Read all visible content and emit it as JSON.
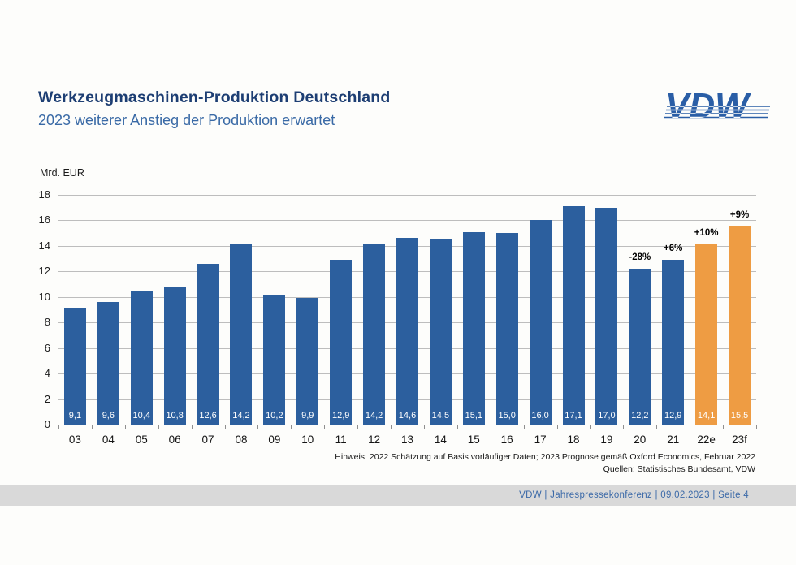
{
  "slide": {
    "header": {
      "title": "Werkzeugmaschinen-Produktion Deutschland",
      "subtitle": "2023 weiterer Anstieg der Produktion erwartet"
    },
    "logo": {
      "text": "VDW",
      "color": "#2a5ea6"
    },
    "chart": {
      "unit_label": "Mrd. EUR"
    },
    "footnote": {
      "line1": "Hinweis: 2022 Schätzung auf Basis vorläufiger Daten; 2023 Prognose gemäß Oxford Economics, Februar 2022",
      "line2": "Quellen: Statistisches Bundesamt, VDW"
    },
    "footer": {
      "text": "VDW  |  Jahrespressekonferenz  |   09.02.2023    |  Seite  4"
    }
  },
  "chart_data": {
    "type": "bar",
    "title": "Werkzeugmaschinen-Produktion Deutschland",
    "xlabel": "",
    "ylabel": "Mrd. EUR",
    "ylim": [
      0,
      18
    ],
    "ytick_step": 2,
    "grid": true,
    "legend_position": "none",
    "categories": [
      "03",
      "04",
      "05",
      "06",
      "07",
      "08",
      "09",
      "10",
      "11",
      "12",
      "13",
      "14",
      "15",
      "16",
      "17",
      "18",
      "19",
      "20",
      "21",
      "22e",
      "23f"
    ],
    "values": [
      9.1,
      9.6,
      10.4,
      10.8,
      12.6,
      14.2,
      10.2,
      9.9,
      12.9,
      14.2,
      14.6,
      14.5,
      15.1,
      15.0,
      16.0,
      17.1,
      17.0,
      12.2,
      12.9,
      14.1,
      15.5
    ],
    "value_labels": [
      "9,1",
      "9,6",
      "10,4",
      "10,8",
      "12,6",
      "14,2",
      "10,2",
      "9,9",
      "12,9",
      "14,2",
      "14,6",
      "14,5",
      "15,1",
      "15,0",
      "16,0",
      "17,1",
      "17,0",
      "12,2",
      "12,9",
      "14,1",
      "15,5"
    ],
    "annotations": [
      {
        "category": "20",
        "label": "-28%"
      },
      {
        "category": "21",
        "label": "+6%"
      },
      {
        "category": "22e",
        "label": "+10%"
      },
      {
        "category": "23f",
        "label": "+9%"
      }
    ],
    "forecast_categories": [
      "22e",
      "23f"
    ],
    "colors": {
      "actual": "#2c5f9e",
      "forecast": "#ee9c43"
    }
  }
}
